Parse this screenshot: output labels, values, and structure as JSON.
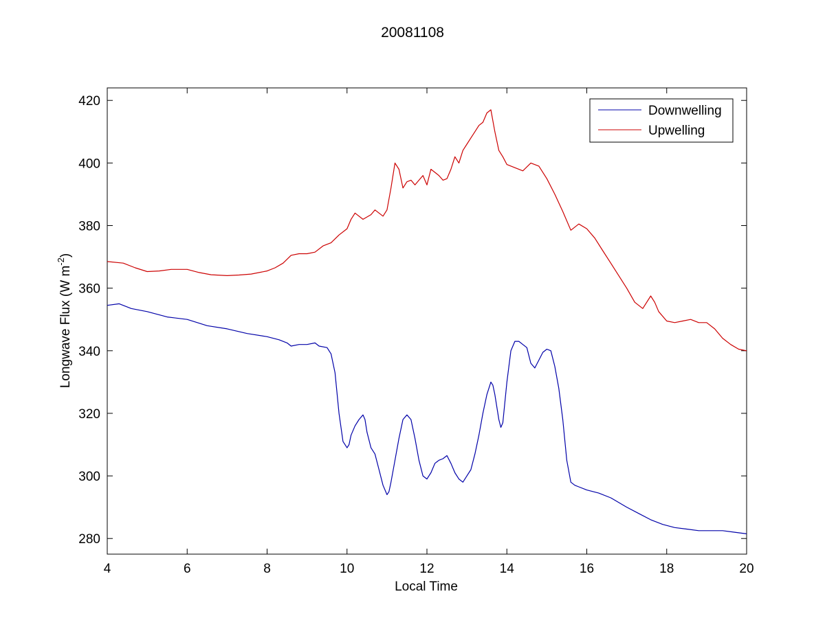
{
  "chart_data": {
    "type": "line",
    "title": "20081108",
    "xlabel": "Local Time",
    "ylabel_main": "Longwave Flux (W m",
    "ylabel_sup": "-2",
    "ylabel_close": ")",
    "xlim": [
      4,
      20
    ],
    "ylim": [
      275,
      424
    ],
    "xticks": [
      4,
      6,
      8,
      10,
      12,
      14,
      16,
      18,
      20
    ],
    "yticks": [
      280,
      300,
      320,
      340,
      360,
      380,
      400,
      420
    ],
    "legend_position": "top-right",
    "grid": false,
    "series": [
      {
        "name": "Downwelling",
        "color": "#0000a8",
        "x": [
          4.0,
          4.3,
          4.6,
          5.0,
          5.5,
          6.0,
          6.5,
          7.0,
          7.5,
          8.0,
          8.3,
          8.5,
          8.6,
          8.8,
          9.0,
          9.2,
          9.3,
          9.5,
          9.6,
          9.7,
          9.8,
          9.9,
          10.0,
          10.05,
          10.1,
          10.2,
          10.3,
          10.4,
          10.45,
          10.5,
          10.6,
          10.7,
          10.8,
          10.9,
          11.0,
          11.05,
          11.1,
          11.2,
          11.3,
          11.4,
          11.5,
          11.6,
          11.65,
          11.7,
          11.8,
          11.9,
          12.0,
          12.1,
          12.2,
          12.3,
          12.4,
          12.5,
          12.6,
          12.7,
          12.8,
          12.9,
          13.0,
          13.1,
          13.2,
          13.3,
          13.4,
          13.5,
          13.6,
          13.65,
          13.7,
          13.8,
          13.85,
          13.9,
          14.0,
          14.1,
          14.2,
          14.3,
          14.4,
          14.5,
          14.6,
          14.7,
          14.8,
          14.9,
          15.0,
          15.1,
          15.2,
          15.3,
          15.4,
          15.5,
          15.6,
          15.7,
          15.8,
          16.0,
          16.3,
          16.6,
          17.0,
          17.3,
          17.6,
          17.9,
          18.2,
          18.5,
          18.8,
          19.1,
          19.4,
          19.7,
          20.0
        ],
        "y": [
          354.5,
          355,
          353.5,
          352.5,
          350.8,
          350,
          348,
          347,
          345.5,
          344.5,
          343.5,
          342.5,
          341.5,
          342,
          342,
          342.5,
          341.5,
          341,
          339,
          333,
          320,
          311,
          309,
          310,
          313,
          316,
          318,
          319.5,
          318,
          314,
          309,
          307,
          302,
          297,
          294,
          295,
          298,
          305,
          312,
          318,
          319.5,
          318,
          315,
          312,
          305,
          300,
          299,
          301,
          304,
          305,
          305.5,
          306.5,
          304,
          301,
          299,
          298,
          300,
          302,
          307,
          313,
          320,
          326,
          330,
          329,
          326,
          318,
          315.5,
          317,
          330,
          340,
          343,
          343,
          342,
          341,
          336,
          334.5,
          337,
          339.5,
          340.5,
          340,
          335,
          328,
          318,
          305,
          298,
          297,
          296.5,
          295.5,
          294.5,
          293,
          290,
          288,
          286,
          284.5,
          283.5,
          283,
          282.5,
          282.5,
          282.5,
          282,
          281.5
        ]
      },
      {
        "name": "Upwelling",
        "color": "#cc0000",
        "x": [
          4.0,
          4.4,
          4.7,
          5.0,
          5.3,
          5.6,
          6.0,
          6.3,
          6.6,
          7.0,
          7.3,
          7.6,
          8.0,
          8.2,
          8.4,
          8.6,
          8.8,
          9.0,
          9.2,
          9.4,
          9.6,
          9.8,
          10.0,
          10.1,
          10.2,
          10.4,
          10.6,
          10.7,
          10.8,
          10.9,
          11.0,
          11.1,
          11.2,
          11.3,
          11.4,
          11.5,
          11.6,
          11.7,
          11.8,
          11.9,
          12.0,
          12.1,
          12.2,
          12.3,
          12.4,
          12.5,
          12.6,
          12.7,
          12.8,
          12.9,
          13.0,
          13.1,
          13.2,
          13.3,
          13.4,
          13.5,
          13.6,
          13.7,
          13.8,
          13.9,
          14.0,
          14.2,
          14.4,
          14.6,
          14.8,
          15.0,
          15.2,
          15.4,
          15.6,
          15.8,
          16.0,
          16.2,
          16.4,
          16.6,
          16.8,
          17.0,
          17.2,
          17.4,
          17.6,
          17.7,
          17.8,
          18.0,
          18.2,
          18.4,
          18.6,
          18.8,
          19.0,
          19.2,
          19.4,
          19.6,
          19.8,
          20.0
        ],
        "y": [
          368.5,
          368,
          366.5,
          365.3,
          365.5,
          366,
          366,
          365,
          364.3,
          364,
          364.2,
          364.5,
          365.5,
          366.5,
          368,
          370.5,
          371,
          371,
          371.5,
          373.5,
          374.5,
          377,
          379,
          382,
          384,
          382,
          383.5,
          385,
          384,
          383,
          385,
          392,
          400,
          398,
          392,
          394,
          394.5,
          393,
          394.5,
          396,
          393,
          398,
          397,
          396,
          394.5,
          395,
          398,
          402,
          400,
          404,
          406,
          408,
          410,
          412,
          413,
          416,
          417,
          410,
          404,
          402,
          399.5,
          398.5,
          397.5,
          400,
          399,
          395,
          390,
          384.5,
          378.5,
          380.5,
          379,
          376,
          372,
          368,
          364,
          360,
          355.5,
          353.5,
          357.5,
          355.5,
          352.5,
          349.5,
          349,
          349.5,
          350,
          349,
          349,
          347,
          344,
          342,
          340.5,
          340
        ]
      }
    ]
  }
}
